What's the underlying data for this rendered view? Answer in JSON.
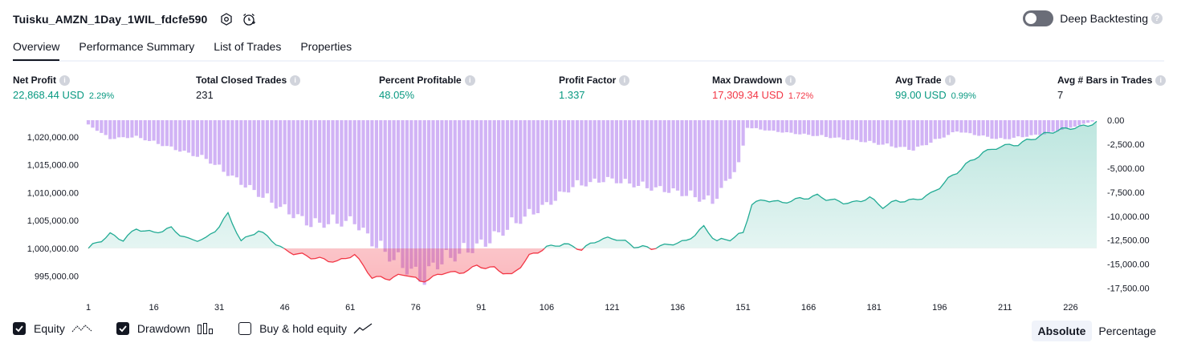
{
  "header": {
    "strategy_name": "Tuisku_AMZN_1Day_1WIL_fdcfe590",
    "deep_backtesting_label": "Deep Backtesting"
  },
  "tabs": [
    {
      "label": "Overview"
    },
    {
      "label": "Performance Summary"
    },
    {
      "label": "List of Trades"
    },
    {
      "label": "Properties"
    }
  ],
  "metrics": {
    "net_profit": {
      "label": "Net Profit",
      "value": "22,868.44 USD",
      "sub": "2.29%"
    },
    "total_closed_trades": {
      "label": "Total Closed Trades",
      "value": "231"
    },
    "percent_profitable": {
      "label": "Percent Profitable",
      "value": "48.05%"
    },
    "profit_factor": {
      "label": "Profit Factor",
      "value": "1.337"
    },
    "max_drawdown": {
      "label": "Max Drawdown",
      "value": "17,309.34 USD",
      "sub": "1.72%"
    },
    "avg_trade": {
      "label": "Avg Trade",
      "value": "99.00 USD",
      "sub": "0.99%"
    },
    "avg_bars": {
      "label": "Avg # Bars in Trades",
      "value": "7"
    }
  },
  "legend": {
    "equity_label": "Equity",
    "drawdown_label": "Drawdown",
    "buy_hold_label": "Buy & hold equity"
  },
  "modes": {
    "absolute": "Absolute",
    "percentage": "Percentage"
  },
  "colors": {
    "equity": "#22ab94",
    "equity_below": "#f23645",
    "drawdown": "#c9a6f3",
    "accent_green": "#089981",
    "accent_red": "#f23645"
  },
  "chart_data": {
    "type": "line",
    "x_ticks": [
      1,
      16,
      31,
      46,
      61,
      76,
      91,
      106,
      121,
      136,
      151,
      166,
      181,
      196,
      211,
      226
    ],
    "x_range": [
      1,
      232
    ],
    "left_axis": {
      "ticks": [
        "1,020,000.00",
        "1,015,000.00",
        "1,010,000.00",
        "1,005,000.00",
        "1,000,000.00",
        "995,000.00"
      ],
      "range": [
        992500,
        1023000
      ]
    },
    "right_axis": {
      "ticks": [
        "0.00",
        "-2,500.00",
        "-5,000.00",
        "-7,500.00",
        "-10,000.00",
        "-12,500.00",
        "-15,000.00",
        "-17,500.00"
      ],
      "range": [
        -17700,
        0
      ]
    },
    "initial_capital": 1000000,
    "series": [
      {
        "type": "line",
        "trade": [
          1,
          6,
          9,
          12,
          16,
          20,
          24,
          28,
          31,
          33,
          36,
          40,
          43,
          46,
          50,
          54,
          58,
          62,
          66,
          70,
          74,
          77,
          80,
          83,
          86,
          90,
          94,
          98,
          102,
          106,
          110,
          114,
          118,
          122,
          126,
          130,
          134,
          138,
          142,
          145,
          148,
          151,
          153,
          156,
          160,
          164,
          168,
          172,
          176,
          180,
          183,
          186,
          190,
          194,
          198,
          202,
          206,
          210,
          214,
          218,
          222,
          226,
          230,
          232
        ],
        "values": [
          1000000,
          1002500,
          1001500,
          1003500,
          1002800,
          1003600,
          1001500,
          1001700,
          1004000,
          1006200,
          1001300,
          1003200,
          1001500,
          999600,
          998800,
          998100,
          997600,
          998900,
          994800,
          994600,
          995400,
          994000,
          994800,
          995800,
          995500,
          996800,
          996400,
          995100,
          998600,
          1000200,
          1000800,
          999800,
          1001600,
          1001800,
          1000400,
          1000000,
          1000700,
          1001300,
          1003800,
          1001300,
          1001700,
          1002700,
          1008000,
          1008700,
          1008200,
          1008900,
          1009400,
          1008500,
          1008100,
          1009100,
          1007400,
          1008500,
          1008600,
          1009700,
          1012400,
          1015000,
          1017200,
          1018300,
          1018700,
          1019900,
          1021000,
          1021600,
          1022000,
          1022800
        ]
      },
      {
        "type": "bar",
        "trade": [
          1,
          6,
          12,
          20,
          28,
          36,
          44,
          52,
          62,
          66,
          72,
          78,
          80,
          86,
          92,
          100,
          106,
          112,
          120,
          128,
          136,
          144,
          150,
          152,
          158,
          170,
          180,
          190,
          200,
          210,
          220,
          226,
          232
        ],
        "values": [
          -500,
          -2000,
          -1800,
          -3000,
          -4200,
          -6800,
          -9200,
          -11300,
          -11000,
          -13200,
          -15500,
          -17309,
          -15800,
          -14500,
          -13300,
          -10800,
          -9200,
          -7200,
          -6400,
          -7200,
          -7800,
          -8900,
          -4800,
          -800,
          -1200,
          -1800,
          -2400,
          -3200,
          -1200,
          -2100,
          -1500,
          -800,
          0
        ]
      }
    ]
  }
}
